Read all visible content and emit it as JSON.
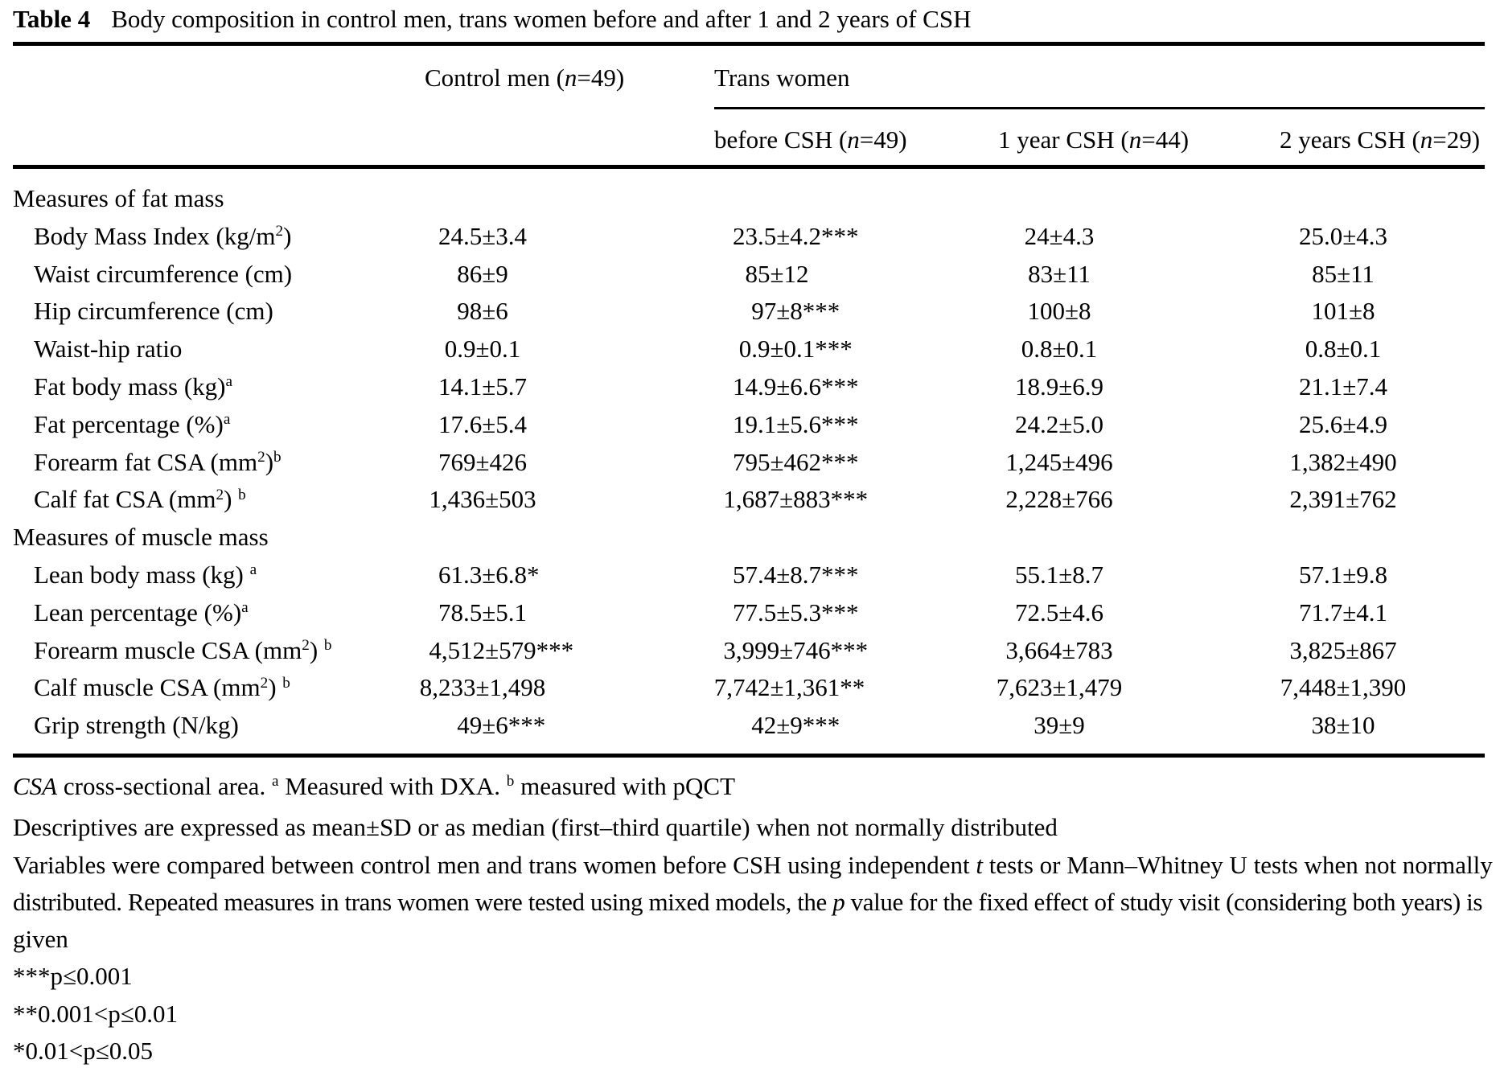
{
  "title": {
    "label": "Table 4",
    "text": "Body composition in control men, trans women before and after 1 and 2 years of CSH"
  },
  "header": {
    "control": [
      {
        "t": "Control men ("
      },
      {
        "t": "n",
        "i": true
      },
      {
        "t": "=49)"
      }
    ],
    "group": "Trans women",
    "subcols": [
      [
        {
          "t": "before CSH ("
        },
        {
          "t": "n",
          "i": true
        },
        {
          "t": "=49)"
        }
      ],
      [
        {
          "t": "1 year CSH ("
        },
        {
          "t": "n",
          "i": true
        },
        {
          "t": "=44)"
        }
      ],
      [
        {
          "t": "2 years CSH ("
        },
        {
          "t": "n",
          "i": true
        },
        {
          "t": "=29)"
        }
      ]
    ]
  },
  "body": {
    "sections": [
      {
        "title": "Measures of fat mass",
        "rows": [
          {
            "label": [
              {
                "t": "Body Mass Index (kg/m"
              },
              {
                "t": "2",
                "sup": true
              },
              {
                "t": ")"
              }
            ],
            "cells": [
              {
                "v": "24.5±3.4"
              },
              {
                "v": "23.5±4.2",
                "s": "***"
              },
              {
                "v": "24±4.3"
              },
              {
                "v": "25.0±4.3"
              }
            ]
          },
          {
            "label": [
              {
                "t": "Waist circumference (cm)"
              }
            ],
            "cells": [
              {
                "v": "86±9"
              },
              {
                "v": "85±12"
              },
              {
                "v": "83±11"
              },
              {
                "v": "85±11"
              }
            ]
          },
          {
            "label": [
              {
                "t": "Hip circumference (cm)"
              }
            ],
            "cells": [
              {
                "v": "98±6"
              },
              {
                "v": "97±8",
                "s": "***"
              },
              {
                "v": "100±8"
              },
              {
                "v": "101±8"
              }
            ]
          },
          {
            "label": [
              {
                "t": "Waist-hip ratio"
              }
            ],
            "cells": [
              {
                "v": "0.9±0.1"
              },
              {
                "v": "0.9±0.1",
                "s": "***"
              },
              {
                "v": "0.8±0.1"
              },
              {
                "v": "0.8±0.1"
              }
            ]
          },
          {
            "label": [
              {
                "t": "Fat body mass (kg)"
              },
              {
                "t": "a",
                "sup": true
              }
            ],
            "cells": [
              {
                "v": "14.1±5.7"
              },
              {
                "v": "14.9±6.6",
                "s": "***"
              },
              {
                "v": "18.9±6.9"
              },
              {
                "v": "21.1±7.4"
              }
            ]
          },
          {
            "label": [
              {
                "t": "Fat percentage (%)"
              },
              {
                "t": "a",
                "sup": true
              }
            ],
            "cells": [
              {
                "v": "17.6±5.4"
              },
              {
                "v": "19.1±5.6",
                "s": "***"
              },
              {
                "v": "24.2±5.0"
              },
              {
                "v": "25.6±4.9"
              }
            ]
          },
          {
            "label": [
              {
                "t": "Forearm fat CSA (mm"
              },
              {
                "t": "2",
                "sup": true
              },
              {
                "t": ")"
              },
              {
                "t": "b",
                "sup": true
              }
            ],
            "cells": [
              {
                "v": "769±426"
              },
              {
                "v": "795±462",
                "s": "***"
              },
              {
                "v": "1,245±496"
              },
              {
                "v": "1,382±490"
              }
            ]
          },
          {
            "label": [
              {
                "t": "Calf fat CSA (mm"
              },
              {
                "t": "2",
                "sup": true
              },
              {
                "t": ") "
              },
              {
                "t": "b",
                "sup": true
              }
            ],
            "cells": [
              {
                "v": "1,436±503"
              },
              {
                "v": "1,687±883",
                "s": "***"
              },
              {
                "v": "2,228±766"
              },
              {
                "v": "2,391±762"
              }
            ]
          }
        ]
      },
      {
        "title": "Measures of muscle mass",
        "rows": [
          {
            "label": [
              {
                "t": "Lean body mass (kg) "
              },
              {
                "t": "a",
                "sup": true
              }
            ],
            "cells": [
              {
                "v": "61.3±6.8",
                "s": "*"
              },
              {
                "v": "57.4±8.7",
                "s": "***"
              },
              {
                "v": "55.1±8.7"
              },
              {
                "v": "57.1±9.8"
              }
            ]
          },
          {
            "label": [
              {
                "t": "Lean percentage (%)"
              },
              {
                "t": "a",
                "sup": true
              }
            ],
            "cells": [
              {
                "v": "78.5±5.1"
              },
              {
                "v": "77.5±5.3",
                "s": "***"
              },
              {
                "v": "72.5±4.6"
              },
              {
                "v": "71.7±4.1"
              }
            ]
          },
          {
            "label": [
              {
                "t": "Forearm muscle CSA (mm"
              },
              {
                "t": "2",
                "sup": true
              },
              {
                "t": ") "
              },
              {
                "t": "b",
                "sup": true
              }
            ],
            "cells": [
              {
                "v": "4,512±579",
                "s": "***"
              },
              {
                "v": "3,999±746",
                "s": "***"
              },
              {
                "v": "3,664±783"
              },
              {
                "v": "3,825±867"
              }
            ]
          },
          {
            "label": [
              {
                "t": "Calf muscle CSA (mm"
              },
              {
                "t": "2",
                "sup": true
              },
              {
                "t": ") "
              },
              {
                "t": "b",
                "sup": true
              }
            ],
            "cells": [
              {
                "v": "8,233±1,498"
              },
              {
                "v": "7,742±1,361",
                "s": "**"
              },
              {
                "v": "7,623±1,479"
              },
              {
                "v": "7,448±1,390"
              }
            ]
          },
          {
            "label": [
              {
                "t": "Grip strength (N/kg)"
              }
            ],
            "cells": [
              {
                "v": "49±6",
                "s": "***"
              },
              {
                "v": "42±9",
                "s": "***"
              },
              {
                "v": "39±9"
              },
              {
                "v": "38±10"
              }
            ]
          }
        ]
      }
    ]
  },
  "footnotes": [
    {
      "segs": [
        {
          "t": "CSA",
          "i": true
        },
        {
          "t": " cross-sectional area. "
        },
        {
          "t": "a",
          "sup": true
        },
        {
          "t": " Measured with DXA. "
        },
        {
          "t": "b",
          "sup": true
        },
        {
          "t": " measured with pQCT"
        }
      ]
    },
    {
      "segs": [
        {
          "t": "Descriptives are expressed as mean±SD or as median (first–third quartile) when not normally distributed"
        }
      ]
    },
    {
      "segs": [
        {
          "t": "Variables were compared between control men and trans women before CSH using independent "
        },
        {
          "t": "t",
          "i": true
        },
        {
          "t": " tests or Mann–Whitney U tests when not normally"
        }
      ]
    },
    {
      "segs": [
        {
          "t": "distributed. Repeated measures in trans women were tested using mixed models, the "
        },
        {
          "t": "p",
          "i": true
        },
        {
          "t": " value for the fixed effect of study visit (considering both years) is"
        }
      ],
      "tight": true
    },
    {
      "segs": [
        {
          "t": "given"
        }
      ]
    },
    {
      "segs": [
        {
          "t": "***p≤0.001"
        }
      ]
    },
    {
      "segs": [
        {
          "t": "**0.001<p≤0.01"
        }
      ]
    },
    {
      "segs": [
        {
          "t": "*0.01<p≤0.05"
        }
      ]
    }
  ]
}
